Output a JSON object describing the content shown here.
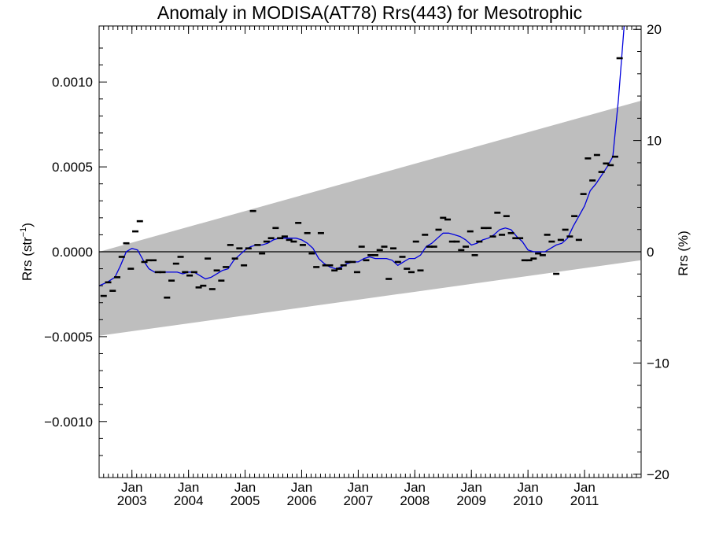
{
  "chart_data": {
    "type": "scatter",
    "title": "Anomaly in MODISA(AT78) Rrs(443) for Mesotrophic",
    "ylabel_prefix": "Rrs (str",
    "ylabel_sup": "−1",
    "ylabel_suffix": ")",
    "y2label": "Rrs (%)",
    "x_range": [
      2002.42,
      2012.0
    ],
    "ylim": [
      -0.00133,
      0.00133
    ],
    "y2lim": [
      -20.3,
      20.3
    ],
    "y_ticks": [
      {
        "value": 0.001,
        "label": "0.0010"
      },
      {
        "value": 0.0005,
        "label": "0.0005"
      },
      {
        "value": 0.0,
        "label": "0.0000"
      },
      {
        "value": -0.0005,
        "label": "−0.0005"
      },
      {
        "value": -0.001,
        "label": "−0.0010"
      }
    ],
    "y2_ticks": [
      {
        "value": 20,
        "label": "20"
      },
      {
        "value": 10,
        "label": "10"
      },
      {
        "value": 0,
        "label": "0"
      },
      {
        "value": -10,
        "label": "−10"
      },
      {
        "value": -20,
        "label": "−20"
      }
    ],
    "x_ticks": [
      {
        "value": 2003.0,
        "month": "Jan",
        "year": "2003"
      },
      {
        "value": 2004.0,
        "month": "Jan",
        "year": "2004"
      },
      {
        "value": 2005.0,
        "month": "Jan",
        "year": "2005"
      },
      {
        "value": 2006.0,
        "month": "Jan",
        "year": "2006"
      },
      {
        "value": 2007.0,
        "month": "Jan",
        "year": "2007"
      },
      {
        "value": 2008.0,
        "month": "Jan",
        "year": "2008"
      },
      {
        "value": 2009.0,
        "month": "Jan",
        "year": "2009"
      },
      {
        "value": 2010.0,
        "month": "Jan",
        "year": "2010"
      },
      {
        "value": 2011.0,
        "month": "Jan",
        "year": "2011"
      }
    ],
    "band": {
      "lower": [
        [
          2002.42,
          -0.000495
        ],
        [
          2012.0,
          -5e-05
        ]
      ],
      "upper": [
        [
          2002.42,
          0.0
        ],
        [
          2012.0,
          0.00089
        ]
      ]
    },
    "points": [
      [
        2002.5,
        -0.00026
      ],
      [
        2002.58,
        -0.00018
      ],
      [
        2002.66,
        -0.00023
      ],
      [
        2002.74,
        -0.00015
      ],
      [
        2002.82,
        -3e-05
      ],
      [
        2002.9,
        5e-05
      ],
      [
        2002.98,
        -0.0001
      ],
      [
        2003.06,
        0.00012
      ],
      [
        2003.14,
        0.00018
      ],
      [
        2003.22,
        -6e-05
      ],
      [
        2003.3,
        -5e-05
      ],
      [
        2003.38,
        -5e-05
      ],
      [
        2003.46,
        -0.00012
      ],
      [
        2003.54,
        -0.00012
      ],
      [
        2003.62,
        -0.00027
      ],
      [
        2003.7,
        -0.00017
      ],
      [
        2003.78,
        -7e-05
      ],
      [
        2003.86,
        -3e-05
      ],
      [
        2003.94,
        -0.00012
      ],
      [
        2004.02,
        -0.00014
      ],
      [
        2004.1,
        -0.00012
      ],
      [
        2004.18,
        -0.00021
      ],
      [
        2004.26,
        -0.0002
      ],
      [
        2004.34,
        -4e-05
      ],
      [
        2004.42,
        -0.00022
      ],
      [
        2004.5,
        -0.00011
      ],
      [
        2004.58,
        -0.00017
      ],
      [
        2004.66,
        -9e-05
      ],
      [
        2004.74,
        4e-05
      ],
      [
        2004.82,
        -4e-05
      ],
      [
        2004.9,
        2e-05
      ],
      [
        2004.98,
        -8e-05
      ],
      [
        2005.06,
        2e-05
      ],
      [
        2005.14,
        0.00024
      ],
      [
        2005.22,
        4e-05
      ],
      [
        2005.3,
        -1e-05
      ],
      [
        2005.38,
        6e-05
      ],
      [
        2005.46,
        8e-05
      ],
      [
        2005.54,
        0.00014
      ],
      [
        2005.62,
        8e-05
      ],
      [
        2005.7,
        9e-05
      ],
      [
        2005.78,
        7e-05
      ],
      [
        2005.86,
        6e-05
      ],
      [
        2005.94,
        0.00017
      ],
      [
        2006.02,
        4e-05
      ],
      [
        2006.1,
        0.00011
      ],
      [
        2006.18,
        -1e-05
      ],
      [
        2006.26,
        -9e-05
      ],
      [
        2006.34,
        0.00011
      ],
      [
        2006.42,
        -8e-05
      ],
      [
        2006.5,
        -8e-05
      ],
      [
        2006.58,
        -0.00011
      ],
      [
        2006.66,
        -0.0001
      ],
      [
        2006.74,
        -8e-05
      ],
      [
        2006.82,
        -6e-05
      ],
      [
        2006.9,
        -6e-05
      ],
      [
        2006.98,
        -0.00012
      ],
      [
        2007.06,
        3e-05
      ],
      [
        2007.14,
        -5e-05
      ],
      [
        2007.22,
        -2e-05
      ],
      [
        2007.3,
        -2e-05
      ],
      [
        2007.38,
        1e-05
      ],
      [
        2007.46,
        3e-05
      ],
      [
        2007.54,
        -0.00016
      ],
      [
        2007.62,
        2e-05
      ],
      [
        2007.7,
        -6e-05
      ],
      [
        2007.78,
        -3e-05
      ],
      [
        2007.86,
        -0.0001
      ],
      [
        2007.94,
        -0.00012
      ],
      [
        2008.02,
        6e-05
      ],
      [
        2008.1,
        -0.00011
      ],
      [
        2008.18,
        0.0001
      ],
      [
        2008.26,
        3e-05
      ],
      [
        2008.34,
        3e-05
      ],
      [
        2008.42,
        0.00013
      ],
      [
        2008.5,
        0.0002
      ],
      [
        2008.58,
        0.00019
      ],
      [
        2008.66,
        6e-05
      ],
      [
        2008.74,
        6e-05
      ],
      [
        2008.82,
        1e-05
      ],
      [
        2008.9,
        3e-05
      ],
      [
        2008.98,
        0.00012
      ],
      [
        2009.06,
        -2e-05
      ],
      [
        2009.14,
        6e-05
      ],
      [
        2009.22,
        0.00014
      ],
      [
        2009.3,
        0.00014
      ],
      [
        2009.38,
        9e-05
      ],
      [
        2009.46,
        0.00023
      ],
      [
        2009.54,
        0.0001
      ],
      [
        2009.62,
        0.00021
      ],
      [
        2009.7,
        0.00011
      ],
      [
        2009.78,
        8e-05
      ],
      [
        2009.86,
        8e-05
      ],
      [
        2009.94,
        -5e-05
      ],
      [
        2010.02,
        -5e-05
      ],
      [
        2010.1,
        -4e-05
      ],
      [
        2010.18,
        -1e-05
      ],
      [
        2010.26,
        -2e-05
      ],
      [
        2010.34,
        0.0001
      ],
      [
        2010.42,
        6e-05
      ],
      [
        2010.5,
        -0.00013
      ],
      [
        2010.58,
        7e-05
      ],
      [
        2010.66,
        0.00013
      ],
      [
        2010.74,
        9e-05
      ],
      [
        2010.82,
        0.00021
      ],
      [
        2010.9,
        7e-05
      ],
      [
        2010.98,
        0.00034
      ],
      [
        2011.06,
        0.00055
      ],
      [
        2011.14,
        0.00042
      ],
      [
        2011.22,
        0.00057
      ],
      [
        2011.3,
        0.00047
      ],
      [
        2011.38,
        0.00052
      ],
      [
        2011.46,
        0.00051
      ],
      [
        2011.54,
        0.00056
      ],
      [
        2011.62,
        0.00114
      ]
    ],
    "running_mean": [
      [
        2002.42,
        -0.0002
      ],
      [
        2002.56,
        -0.00018
      ],
      [
        2002.7,
        -0.00015
      ],
      [
        2002.8,
        -8e-05
      ],
      [
        2002.9,
        0.0
      ],
      [
        2003.0,
        2e-05
      ],
      [
        2003.1,
        1e-05
      ],
      [
        2003.2,
        -5e-05
      ],
      [
        2003.3,
        -0.0001
      ],
      [
        2003.4,
        -0.00012
      ],
      [
        2003.5,
        -0.00012
      ],
      [
        2003.6,
        -0.00012
      ],
      [
        2003.7,
        -0.00012
      ],
      [
        2003.8,
        -0.00012
      ],
      [
        2003.9,
        -0.00013
      ],
      [
        2004.0,
        -0.00012
      ],
      [
        2004.1,
        -0.00012
      ],
      [
        2004.2,
        -0.00014
      ],
      [
        2004.3,
        -0.00016
      ],
      [
        2004.4,
        -0.00015
      ],
      [
        2004.5,
        -0.00013
      ],
      [
        2004.6,
        -0.00011
      ],
      [
        2004.7,
        -0.0001
      ],
      [
        2004.8,
        -5e-05
      ],
      [
        2004.9,
        -2e-05
      ],
      [
        2005.0,
        1e-05
      ],
      [
        2005.1,
        3e-05
      ],
      [
        2005.2,
        4e-05
      ],
      [
        2005.3,
        4e-05
      ],
      [
        2005.4,
        5e-05
      ],
      [
        2005.5,
        7e-05
      ],
      [
        2005.6,
        8e-05
      ],
      [
        2005.7,
        8e-05
      ],
      [
        2005.8,
        8e-05
      ],
      [
        2005.9,
        8e-05
      ],
      [
        2006.0,
        7e-05
      ],
      [
        2006.1,
        5e-05
      ],
      [
        2006.2,
        2e-05
      ],
      [
        2006.3,
        -4e-05
      ],
      [
        2006.4,
        -7e-05
      ],
      [
        2006.5,
        -9e-05
      ],
      [
        2006.6,
        -0.0001
      ],
      [
        2006.7,
        -9e-05
      ],
      [
        2006.8,
        -7e-05
      ],
      [
        2006.9,
        -6e-05
      ],
      [
        2007.0,
        -6e-05
      ],
      [
        2007.1,
        -4e-05
      ],
      [
        2007.2,
        -3e-05
      ],
      [
        2007.3,
        -4e-05
      ],
      [
        2007.4,
        -4e-05
      ],
      [
        2007.5,
        -4e-05
      ],
      [
        2007.6,
        -5e-05
      ],
      [
        2007.7,
        -8e-05
      ],
      [
        2007.8,
        -6e-05
      ],
      [
        2007.9,
        -4e-05
      ],
      [
        2008.0,
        -4e-05
      ],
      [
        2008.1,
        -2e-05
      ],
      [
        2008.2,
        3e-05
      ],
      [
        2008.3,
        5e-05
      ],
      [
        2008.4,
        8e-05
      ],
      [
        2008.5,
        0.00011
      ],
      [
        2008.6,
        0.00011
      ],
      [
        2008.7,
        0.0001
      ],
      [
        2008.8,
        9e-05
      ],
      [
        2008.9,
        7e-05
      ],
      [
        2009.0,
        4e-05
      ],
      [
        2009.1,
        5e-05
      ],
      [
        2009.2,
        7e-05
      ],
      [
        2009.3,
        8e-05
      ],
      [
        2009.4,
        0.0001
      ],
      [
        2009.5,
        0.00013
      ],
      [
        2009.6,
        0.00014
      ],
      [
        2009.7,
        0.00013
      ],
      [
        2009.8,
        9e-05
      ],
      [
        2009.9,
        6e-05
      ],
      [
        2010.0,
        1e-05
      ],
      [
        2010.1,
        0.0
      ],
      [
        2010.2,
        0.0
      ],
      [
        2010.3,
        0.0
      ],
      [
        2010.4,
        2e-05
      ],
      [
        2010.5,
        4e-05
      ],
      [
        2010.6,
        5e-05
      ],
      [
        2010.7,
        8e-05
      ],
      [
        2010.8,
        0.00015
      ],
      [
        2010.9,
        0.00021
      ],
      [
        2011.0,
        0.00027
      ],
      [
        2011.1,
        0.00036
      ],
      [
        2011.2,
        0.0004
      ],
      [
        2011.3,
        0.00045
      ],
      [
        2011.4,
        0.0005
      ],
      [
        2011.5,
        0.00056
      ],
      [
        2011.6,
        0.0009
      ],
      [
        2011.7,
        0.00133
      ]
    ],
    "colors": {
      "band": "#bebebe",
      "running_mean": "#0000dd",
      "points": "#000000",
      "zero_line": "#000000"
    }
  }
}
